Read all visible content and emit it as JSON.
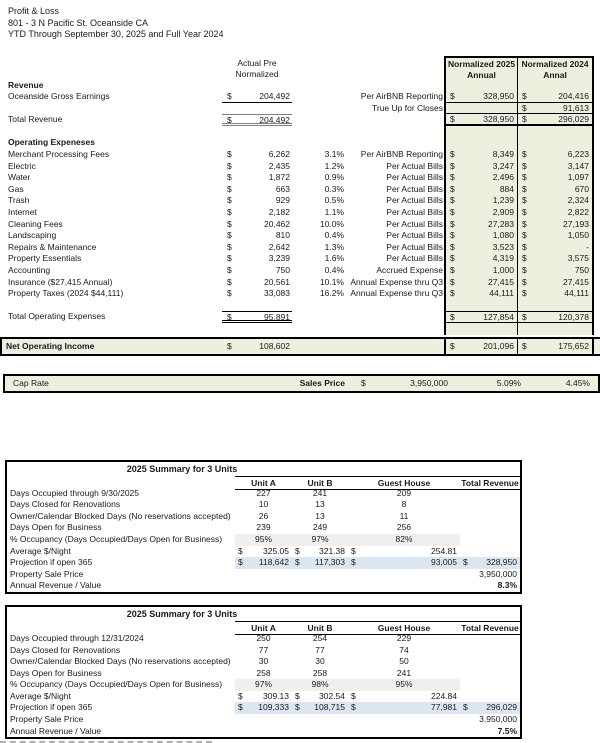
{
  "doc_header": {
    "line1": "Profit & Loss",
    "line2": "801 - 3 N Pacific St. Oceanside CA",
    "line3": "YTD Through September 30, 2025 and Full Year 2024"
  },
  "colors": {
    "band_green": "#edf0df",
    "highlight_blue": "#dce6f1",
    "occupancy_gray": "#efefef"
  },
  "pnl": {
    "col_actual_header": [
      "Actual Pre",
      "Normalized"
    ],
    "col_2025_header": [
      "Normalized 2025",
      "Annual"
    ],
    "col_2024_header": [
      "Normalized 2024",
      "Annal"
    ],
    "rows": [
      {
        "cls": "section",
        "label": "Revenue"
      },
      {
        "cls": "u1 nline",
        "label": "Oceanside Gross Earnings",
        "d1": "$",
        "v1": "204,492",
        "note": "Per AirBNB Reporting",
        "d2": "$",
        "v2": "328,950",
        "d3": "$",
        "v3": "204,416"
      },
      {
        "cls": "nline",
        "note": "True Up for Closes",
        "d3": "$",
        "v3": "91,613"
      },
      {
        "cls": "revtotal",
        "label": "Total Revenue",
        "d1": "$",
        "v1": "204,492",
        "d2": "$",
        "v2": "328,950",
        "d3": "$",
        "v3": "296,029"
      },
      {
        "cls": "spacer"
      },
      {
        "cls": "section",
        "label": "Operating Expeneses"
      },
      {
        "label": "Merchant Processing Fees",
        "d1": "$",
        "v1": "6,262",
        "pct": "3.1%",
        "note": "Per AirBNB Reporting",
        "d2": "$",
        "v2": "8,349",
        "d3": "$",
        "v3": "6,223"
      },
      {
        "label": "Electric",
        "d1": "$",
        "v1": "2,435",
        "pct": "1.2%",
        "note": "Per Actual Bills",
        "d2": "$",
        "v2": "3,247",
        "d3": "$",
        "v3": "3,147"
      },
      {
        "label": "Water",
        "d1": "$",
        "v1": "1,872",
        "pct": "0.9%",
        "note": "Per Actual Bills",
        "d2": "$",
        "v2": "2,496",
        "d3": "$",
        "v3": "1,097"
      },
      {
        "label": "Gas",
        "d1": "$",
        "v1": "663",
        "pct": "0.3%",
        "note": "Per Actual Bills",
        "d2": "$",
        "v2": "884",
        "d3": "$",
        "v3": "670"
      },
      {
        "label": "Trash",
        "d1": "$",
        "v1": "929",
        "pct": "0.5%",
        "note": "Per Actual Bills",
        "d2": "$",
        "v2": "1,239",
        "d3": "$",
        "v3": "2,324"
      },
      {
        "label": "Internet",
        "d1": "$",
        "v1": "2,182",
        "pct": "1.1%",
        "note": "Per Actual Bills",
        "d2": "$",
        "v2": "2,909",
        "d3": "$",
        "v3": "2,822"
      },
      {
        "label": "Cleaning Fees",
        "d1": "$",
        "v1": "20,462",
        "pct": "10.0%",
        "note": "Per Actual Bills",
        "d2": "$",
        "v2": "27,283",
        "d3": "$",
        "v3": "27,193"
      },
      {
        "label": "Landscaping",
        "d1": "$",
        "v1": "810",
        "pct": "0.4%",
        "note": "Per Actual Bills",
        "d2": "$",
        "v2": "1,080",
        "d3": "$",
        "v3": "1,050"
      },
      {
        "label": "Repairs & Maintenance",
        "d1": "$",
        "v1": "2,642",
        "pct": "1.3%",
        "note": "Per Actual Bills",
        "d2": "$",
        "v2": "3,523",
        "d3": "$",
        "v3": "-"
      },
      {
        "label": "Property Essentials",
        "d1": "$",
        "v1": "3,239",
        "pct": "1.6%",
        "note": "Per Actual Bills",
        "d2": "$",
        "v2": "4,319",
        "d3": "$",
        "v3": "3,575"
      },
      {
        "label": "Accounting",
        "d1": "$",
        "v1": "750",
        "pct": "0.4%",
        "note": "Accrued Expense",
        "d2": "$",
        "v2": "1,000",
        "d3": "$",
        "v3": "750"
      },
      {
        "label": "Insurance ($27,415 Annual)",
        "d1": "$",
        "v1": "20,561",
        "pct": "10.1%",
        "note": "Annual Expense thru Q3",
        "d2": "$",
        "v2": "27,415",
        "d3": "$",
        "v3": "27,415"
      },
      {
        "label": "Property Taxes (2024 $44,111)",
        "d1": "$",
        "v1": "33,083",
        "pct": "16.2%",
        "note": "Annual Expense thru Q3",
        "d2": "$",
        "v2": "44,111",
        "d3": "$",
        "v3": "44,111"
      },
      {
        "cls": "spacer"
      },
      {
        "cls": "optotal",
        "label": "Total Operating Expenses",
        "d1": "$",
        "v1": "95,891",
        "d2": "$",
        "v2": "127,854",
        "d3": "$",
        "v3": "120,378"
      },
      {
        "cls": "spacer"
      },
      {
        "cls": "noi",
        "label": "Net Operating Income",
        "d1": "$",
        "v1": "108,602",
        "d2": "$",
        "v2": "201,096",
        "d3": "$",
        "v3": "175,652"
      }
    ]
  },
  "caprate": {
    "label": "Cap Rate",
    "sales_label": "Sales Price",
    "dollar": "$",
    "price": "3,950,000",
    "rate_2025": "5.09%",
    "rate_2024": "4.45%"
  },
  "summary_2025": {
    "title": "2025 Summary for 3 Units",
    "headers": [
      "Unit A",
      "Unit B",
      "Guest House",
      "Total Revenue"
    ],
    "rows": [
      {
        "label": "Days Occupied through 9/30/2025",
        "a": "227",
        "b": "241",
        "g": "209"
      },
      {
        "label": "Days Closed for Renovations",
        "a": "10",
        "b": "13",
        "g": "8"
      },
      {
        "label": "Owner/Calendar Blocked Days (No reservations accepted)",
        "a": "26",
        "b": "13",
        "g": "11"
      },
      {
        "label": "Days Open for Business",
        "a": "239",
        "b": "249",
        "g": "256"
      },
      {
        "cls": "occ",
        "label": "% Occupancy (Days Occupied/Days Open for Business)",
        "a": "95%",
        "b": "97%",
        "g": "82%"
      },
      {
        "cls": "money",
        "label": "Average $/Night",
        "da": "$",
        "a": "325.05",
        "db": "$",
        "b": "321.38",
        "dg": "$",
        "g": "254.81"
      },
      {
        "cls": "money proj",
        "label": "Projection if open 365",
        "da": "$",
        "a": "118,642",
        "db": "$",
        "b": "117,303",
        "dg": "$",
        "g": "93,005",
        "dt": "$",
        "t": "328,950"
      },
      {
        "cls": "money",
        "label": "Property Sale Price",
        "t": "3,950,000"
      },
      {
        "cls": "money arv",
        "label": "Annual Revenue / Value",
        "t": "8.3%"
      }
    ]
  },
  "summary_2024": {
    "title": "2025 Summary for 3 Units",
    "headers": [
      "Unit A",
      "Unit B",
      "Guest House",
      "Total Revenue"
    ],
    "rows": [
      {
        "label": "Days Occupied through 12/31/2024",
        "a": "250",
        "b": "254",
        "g": "229"
      },
      {
        "label": "Days Closed for Renovations",
        "a": "77",
        "b": "77",
        "g": "74"
      },
      {
        "label": "Owner/Calendar Blocked Days (No reservations accepted)",
        "a": "30",
        "b": "30",
        "g": "50"
      },
      {
        "label": "Days Open for Business",
        "a": "258",
        "b": "258",
        "g": "241"
      },
      {
        "cls": "occ",
        "label": "% Occupancy (Days Occupied/Days Open for Business)",
        "a": "97%",
        "b": "98%",
        "g": "95%"
      },
      {
        "cls": "money",
        "label": "Average $/Night",
        "da": "$",
        "a": "309.13",
        "db": "$",
        "b": "302.54",
        "dg": "$",
        "g": "224.84"
      },
      {
        "cls": "money proj",
        "label": "Projection if open 365",
        "da": "$",
        "a": "109,333",
        "db": "$",
        "b": "108,715",
        "dg": "$",
        "g": "77,981",
        "dt": "$",
        "t": "296,029"
      },
      {
        "cls": "money",
        "label": "Property Sale Price",
        "t": "3,950,000"
      },
      {
        "cls": "money arv",
        "label": "Annual Revenue / Value",
        "t": "7.5%"
      }
    ]
  }
}
